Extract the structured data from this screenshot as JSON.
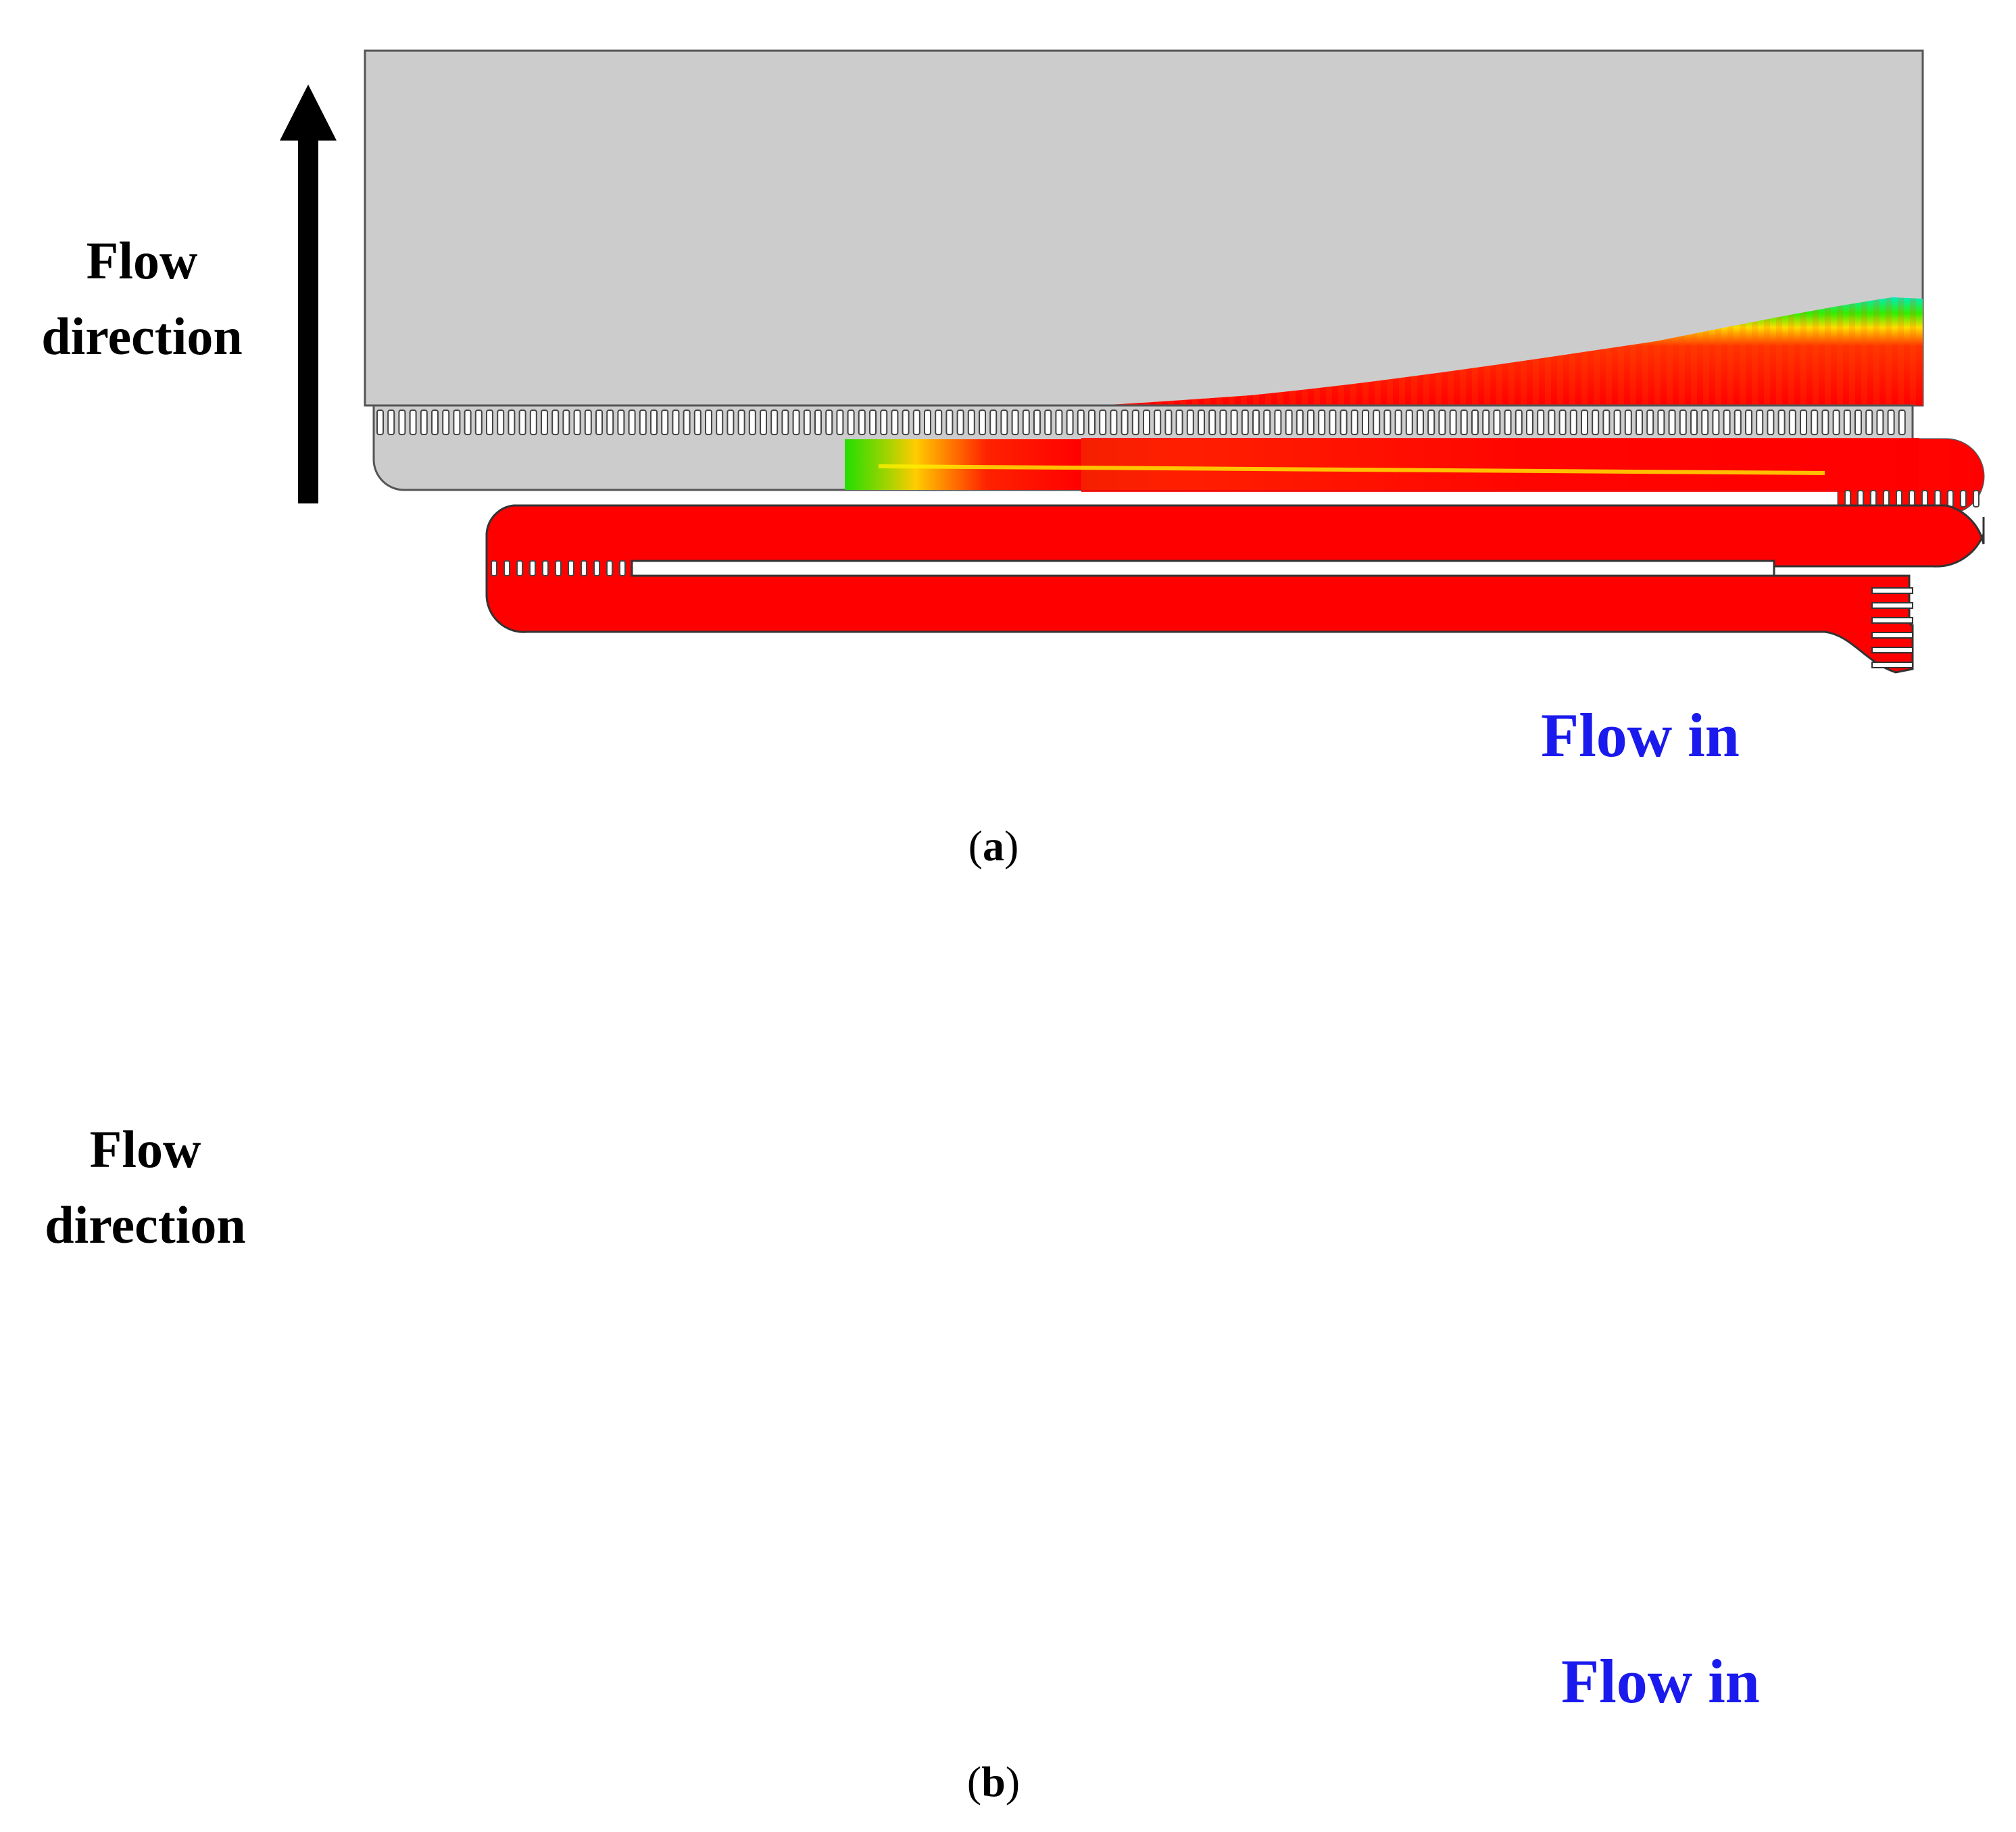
{
  "panels": [
    {
      "caption_open": "(",
      "caption_letter": "a",
      "caption_close": ")",
      "flow_direction": "Flow direction",
      "flow_direction_line1": "Flow",
      "flow_direction_line2": "direction",
      "flow_in": "Flow in"
    },
    {
      "caption_open": "(",
      "caption_letter": "b",
      "caption_close": ")",
      "flow_direction": "Flow direction",
      "flow_direction_line1": "Flow",
      "flow_direction_line2": "direction",
      "flow_in": "Flow in"
    }
  ],
  "colors": {
    "background": "#ffffff",
    "domain_gray": "#cccccc",
    "fluid_red": "#ff0000",
    "front_yellow": "#ffee00",
    "front_green": "#00ee00",
    "front_cyan": "#00eebb",
    "flow_in_blue": "#1a1aee",
    "arrow_black": "#000000"
  }
}
